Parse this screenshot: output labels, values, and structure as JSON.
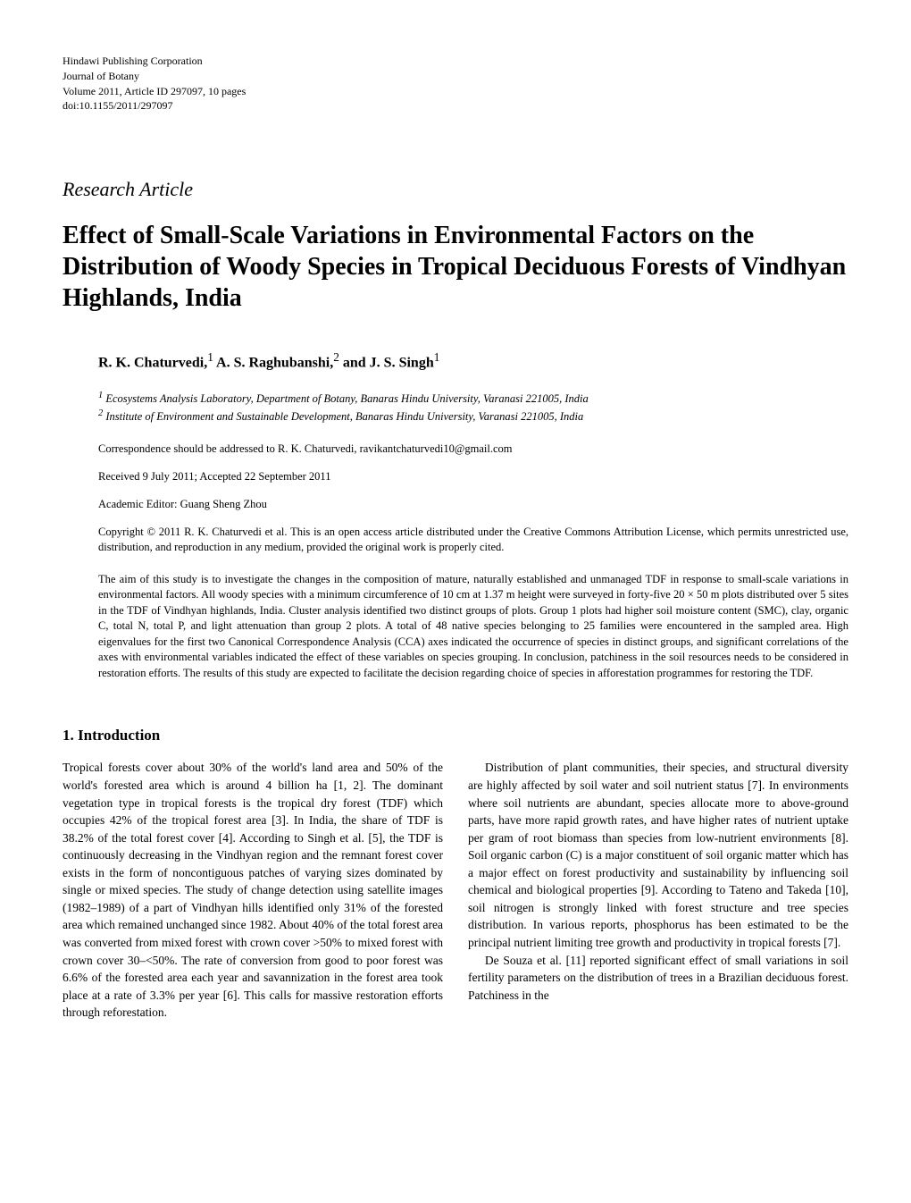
{
  "meta": {
    "publisher": "Hindawi Publishing Corporation",
    "journal": "Journal of Botany",
    "volume_line": "Volume 2011, Article ID 297097, 10 pages",
    "doi": "doi:10.1155/2011/297097"
  },
  "article_type": "Research Article",
  "title": "Effect of Small-Scale Variations in Environmental Factors on the Distribution of Woody Species in Tropical Deciduous Forests of Vindhyan Highlands, India",
  "authors_html": "R. K. Chaturvedi,<sup>1</sup> A. S. Raghubanshi,<sup>2</sup> and J. S. Singh<sup>1</sup>",
  "affiliations": {
    "aff1": "Ecosystems Analysis Laboratory, Department of Botany, Banaras Hindu University, Varanasi 221005, India",
    "aff2": "Institute of Environment and Sustainable Development, Banaras Hindu University, Varanasi 221005, India"
  },
  "correspondence": "Correspondence should be addressed to R. K. Chaturvedi, ravikantchaturvedi10@gmail.com",
  "dates": "Received 9 July 2011; Accepted 22 September 2011",
  "editor": "Academic Editor: Guang Sheng Zhou",
  "copyright": "Copyright © 2011 R. K. Chaturvedi et al. This is an open access article distributed under the Creative Commons Attribution License, which permits unrestricted use, distribution, and reproduction in any medium, provided the original work is properly cited.",
  "abstract": "The aim of this study is to investigate the changes in the composition of mature, naturally established and unmanaged TDF in response to small-scale variations in environmental factors. All woody species with a minimum circumference of 10 cm at 1.37 m height were surveyed in forty-five 20 × 50 m plots distributed over 5 sites in the TDF of Vindhyan highlands, India. Cluster analysis identified two distinct groups of plots. Group 1 plots had higher soil moisture content (SMC), clay, organic C, total N, total P, and light attenuation than group 2 plots. A total of 48 native species belonging to 25 families were encountered in the sampled area. High eigenvalues for the first two Canonical Correspondence Analysis (CCA) axes indicated the occurrence of species in distinct groups, and significant correlations of the axes with environmental variables indicated the effect of these variables on species grouping. In conclusion, patchiness in the soil resources needs to be considered in restoration efforts. The results of this study are expected to facilitate the decision regarding choice of species in afforestation programmes for restoring the TDF.",
  "section_heading": "1. Introduction",
  "body": {
    "p1": "Tropical forests cover about 30% of the world's land area and 50% of the world's forested area which is around 4 billion ha [1, 2]. The dominant vegetation type in tropical forests is the tropical dry forest (TDF) which occupies 42% of the tropical forest area [3]. In India, the share of TDF is 38.2% of the total forest cover [4]. According to Singh et al. [5], the TDF is continuously decreasing in the Vindhyan region and the remnant forest cover exists in the form of noncontiguous patches of varying sizes dominated by single or mixed species. The study of change detection using satellite images (1982–1989) of a part of Vindhyan hills identified only 31% of the forested area which remained unchanged since 1982. About 40% of the total forest area was converted from mixed forest with crown cover >50% to mixed forest with crown cover 30–<50%. The rate of conversion from good to poor forest was 6.6% of the forested area each year and savannization in the forest area took place at a rate of 3.3% per year [6]. This calls for massive restoration efforts through reforestation.",
    "p2": "Distribution of plant communities, their species, and structural diversity are highly affected by soil water and soil nutrient status [7]. In environments where soil nutrients are abundant, species allocate more to above-ground parts, have more rapid growth rates, and have higher rates of nutrient uptake per gram of root biomass than species from low-nutrient environments [8]. Soil organic carbon (C) is a major constituent of soil organic matter which has a major effect on forest productivity and sustainability by influencing soil chemical and biological properties [9]. According to Tateno and Takeda [10], soil nitrogen is strongly linked with forest structure and tree species distribution. In various reports, phosphorus has been estimated to be the principal nutrient limiting tree growth and productivity in tropical forests [7].",
    "p3": "De Souza et al. [11] reported significant effect of small variations in soil fertility parameters on the distribution of trees in a Brazilian deciduous forest. Patchiness in the"
  }
}
